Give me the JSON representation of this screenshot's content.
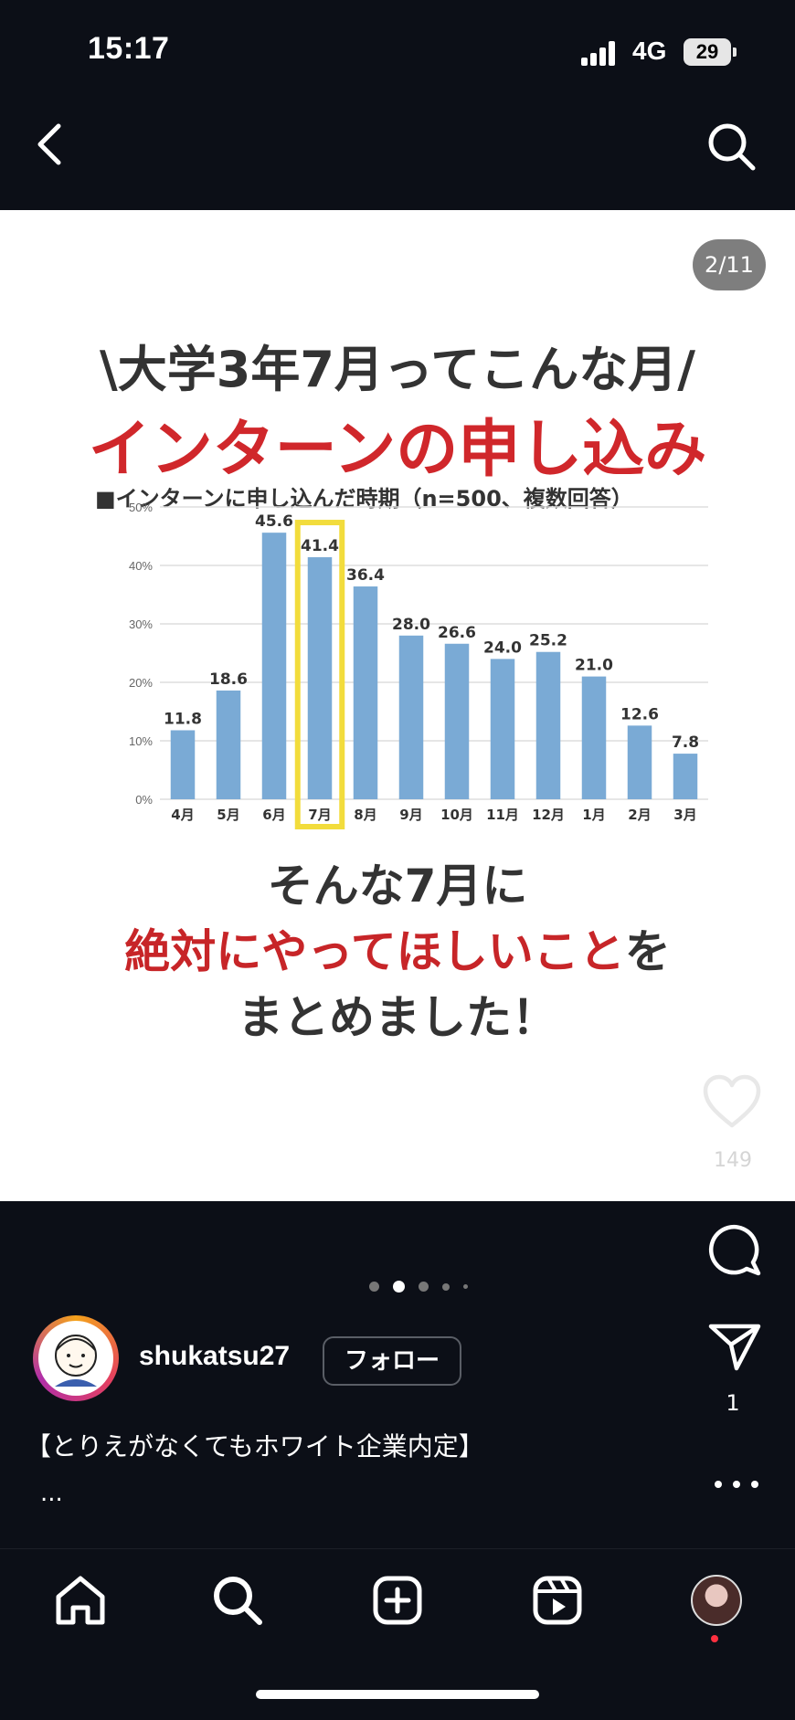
{
  "status_bar": {
    "time": "15:17",
    "network": "4G",
    "battery": "29"
  },
  "post": {
    "counter": "2/11",
    "headline1": "\\大学3年7月ってこんな月/",
    "headline2": "インターンの申し込み",
    "sub1": "そんな7月に",
    "sub2_red": "絶対にやってほしいこと",
    "sub2_dark": "を",
    "sub3": "まとめました！"
  },
  "chart_data": {
    "type": "bar",
    "title": "■インターンに申し込んだ時期（n=500、複数回答）",
    "categories": [
      "4月",
      "5月",
      "6月",
      "7月",
      "8月",
      "9月",
      "10月",
      "11月",
      "12月",
      "1月",
      "2月",
      "3月"
    ],
    "values": [
      11.8,
      18.6,
      45.6,
      41.4,
      36.4,
      28.0,
      26.6,
      24.0,
      25.2,
      21.0,
      12.6,
      7.8
    ],
    "value_labels": [
      "11.8",
      "18.6",
      "45.6",
      "41.4",
      "36.4",
      "28.0",
      "26.6",
      "24.0",
      "25.2",
      "21.0",
      "12.6",
      "7.8"
    ],
    "y_ticks": [
      "0%",
      "10%",
      "20%",
      "30%",
      "40%",
      "50%"
    ],
    "ylim": [
      0,
      50
    ],
    "highlight_category": "7月",
    "bar_color": "#7aaad5",
    "highlight_color": "#f2dc3c",
    "grid": true
  },
  "actions": {
    "like_count": "149",
    "share_count": "1"
  },
  "carousel": {
    "total_dots": 5,
    "active_index": 1
  },
  "author": {
    "username": "shukatsu27",
    "follow_label": "フォロー"
  },
  "caption": {
    "text": "【とりえがなくてもホワイト企業内定】",
    "more": "..."
  },
  "colors": {
    "background": "#0c0f17",
    "accent_red": "#c72528",
    "notification_dot": "#ff3040"
  }
}
